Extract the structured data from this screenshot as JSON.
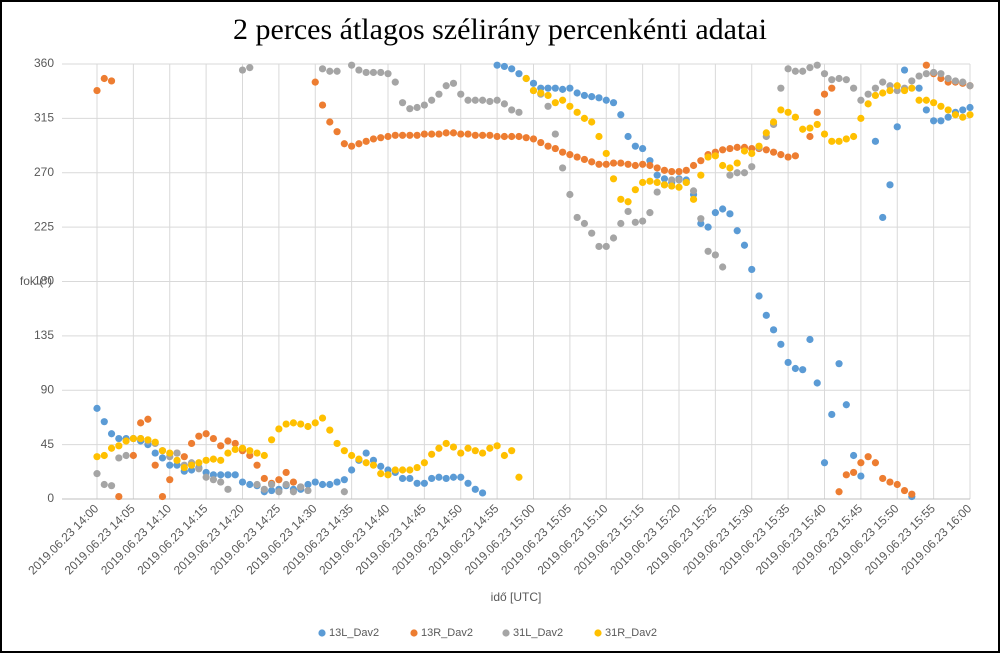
{
  "chart_data": {
    "type": "scatter",
    "title": "2 perces átlagos szélirány percenkénti adatai",
    "x_label": "idő [UTC]",
    "y_label": "fok (°)",
    "ylim": [
      0,
      360
    ],
    "yticks": [
      0,
      45,
      90,
      135,
      180,
      225,
      270,
      315,
      360
    ],
    "grid": true,
    "legend": "bottom",
    "categories": [
      "2019.06.23 14:00",
      null,
      null,
      null,
      null,
      "2019.06.23 14:05",
      null,
      null,
      null,
      null,
      "2019.06.23 14:10",
      null,
      null,
      null,
      null,
      "2019.06.23 14:15",
      null,
      null,
      null,
      null,
      "2019.06.23 14:20",
      null,
      null,
      null,
      null,
      "2019.06.23 14:25",
      null,
      null,
      null,
      null,
      "2019.06.23 14:30",
      null,
      null,
      null,
      null,
      "2019.06.23 14:35",
      null,
      null,
      null,
      null,
      "2019.06.23 14:40",
      null,
      null,
      null,
      null,
      "2019.06.23 14:45",
      null,
      null,
      null,
      null,
      "2019.06.23 14:50",
      null,
      null,
      null,
      null,
      "2019.06.23 14:55",
      null,
      null,
      null,
      null,
      "2019.06.23 15:00",
      null,
      null,
      null,
      null,
      "2019.06.23 15:05",
      null,
      null,
      null,
      null,
      "2019.06.23 15:10",
      null,
      null,
      null,
      null,
      "2019.06.23 15:15",
      null,
      null,
      null,
      null,
      "2019.06.23 15:20",
      null,
      null,
      null,
      null,
      "2019.06.23 15:25",
      null,
      null,
      null,
      null,
      "2019.06.23 15:30",
      null,
      null,
      null,
      null,
      "2019.06.23 15:35",
      null,
      null,
      null,
      null,
      "2019.06.23 15:40",
      null,
      null,
      null,
      null,
      "2019.06.23 15:45",
      null,
      null,
      null,
      null,
      "2019.06.23 15:50",
      null,
      null,
      null,
      null,
      "2019.06.23 15:55",
      null,
      null,
      null,
      null,
      "2019.06.23 16:00"
    ],
    "series": [
      {
        "name": "13L_Dav2",
        "color": "#5b9bd5",
        "values": [
          75,
          64,
          54,
          50,
          50,
          50,
          48,
          45,
          38,
          34,
          28,
          28,
          23,
          24,
          26,
          22,
          20,
          20,
          20,
          20,
          14,
          12,
          11,
          6,
          7,
          8,
          11,
          8,
          8,
          12,
          14,
          12,
          12,
          14,
          16,
          24,
          32,
          38,
          32,
          27,
          24,
          22,
          17,
          17,
          13,
          13,
          17,
          18,
          17,
          18,
          18,
          13,
          8,
          5,
          null,
          359,
          358,
          356,
          352,
          348,
          344,
          340,
          340,
          340,
          339,
          340,
          336,
          334,
          333,
          332,
          330,
          328,
          318,
          300,
          292,
          290,
          280,
          268,
          265,
          262,
          265,
          264,
          252,
          228,
          225,
          237,
          240,
          236,
          222,
          210,
          190,
          168,
          152,
          140,
          128,
          113,
          108,
          107,
          132,
          96,
          30,
          70,
          112,
          78,
          36,
          19,
          null,
          296,
          233,
          260,
          308,
          355,
          2,
          340,
          322,
          313,
          313,
          316,
          320,
          322,
          324
        ]
      },
      {
        "name": "13R_Dav2",
        "color": "#ed7d31",
        "values": [
          338,
          348,
          346,
          2,
          null,
          36,
          63,
          66,
          28,
          2,
          16,
          38,
          35,
          46,
          52,
          54,
          50,
          44,
          48,
          46,
          40,
          36,
          28,
          17,
          13,
          16,
          22,
          14,
          10,
          null,
          345,
          326,
          312,
          304,
          294,
          292,
          294,
          296,
          298,
          299,
          300,
          301,
          301,
          301,
          301,
          302,
          302,
          302,
          303,
          303,
          302,
          302,
          301,
          301,
          301,
          300,
          300,
          300,
          300,
          299,
          298,
          295,
          292,
          290,
          287,
          285,
          283,
          281,
          279,
          277,
          277,
          278,
          278,
          277,
          276,
          277,
          276,
          274,
          272,
          271,
          271,
          272,
          276,
          280,
          285,
          287,
          289,
          290,
          291,
          291,
          290,
          290,
          289,
          287,
          285,
          283,
          284,
          null,
          300,
          320,
          335,
          340,
          6,
          20,
          22,
          30,
          35,
          30,
          17,
          14,
          12,
          7,
          4,
          null,
          359,
          352,
          348,
          345,
          345,
          344,
          342
        ]
      },
      {
        "name": "31L_Dav2",
        "color": "#a5a5a5",
        "values": [
          21,
          12,
          11,
          34,
          36,
          50,
          50,
          48,
          46,
          40,
          35,
          38,
          28,
          30,
          25,
          18,
          16,
          14,
          8,
          null,
          355,
          357,
          12,
          8,
          12,
          6,
          12,
          6,
          10,
          7,
          null,
          356,
          354,
          354,
          6,
          359,
          355,
          353,
          353,
          353,
          352,
          345,
          328,
          323,
          324,
          326,
          330,
          335,
          342,
          344,
          335,
          330,
          330,
          330,
          329,
          330,
          327,
          322,
          320,
          null,
          338,
          335,
          325,
          302,
          274,
          252,
          233,
          228,
          220,
          209,
          209,
          216,
          228,
          238,
          229,
          230,
          237,
          254,
          260,
          264,
          264,
          262,
          255,
          232,
          205,
          202,
          192,
          268,
          270,
          270,
          275,
          291,
          300,
          310,
          340,
          356,
          354,
          354,
          357,
          359,
          352,
          347,
          348,
          347,
          340,
          330,
          335,
          340,
          345,
          342,
          338,
          340,
          346,
          350,
          352,
          353,
          352,
          348,
          346,
          345,
          342
        ]
      },
      {
        "name": "31R_Dav2",
        "color": "#ffc000",
        "values": [
          35,
          36,
          42,
          44,
          48,
          50,
          50,
          49,
          47,
          40,
          38,
          32,
          26,
          28,
          30,
          32,
          33,
          32,
          38,
          41,
          42,
          40,
          38,
          36,
          49,
          58,
          62,
          63,
          62,
          60,
          63,
          67,
          57,
          46,
          40,
          36,
          33,
          30,
          28,
          21,
          20,
          24,
          24,
          24,
          26,
          30,
          37,
          42,
          46,
          43,
          38,
          42,
          40,
          38,
          42,
          44,
          36,
          40,
          18,
          348,
          338,
          336,
          334,
          328,
          330,
          325,
          320,
          315,
          312,
          300,
          286,
          265,
          248,
          246,
          256,
          262,
          263,
          262,
          260,
          259,
          258,
          262,
          248,
          268,
          283,
          284,
          276,
          274,
          278,
          288,
          286,
          292,
          303,
          312,
          322,
          320,
          316,
          306,
          307,
          310,
          302,
          296,
          296,
          298,
          300,
          315,
          327,
          334,
          336,
          338,
          342,
          338,
          340,
          330,
          330,
          328,
          325,
          322,
          318,
          316,
          318
        ]
      }
    ]
  }
}
